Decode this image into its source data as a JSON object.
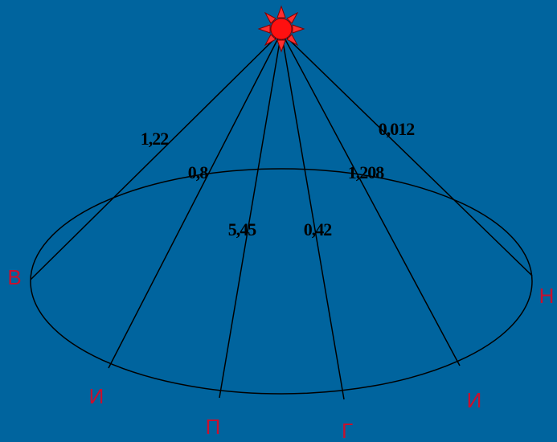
{
  "nodes": [
    {
      "label": "В"
    },
    {
      "label": "И"
    },
    {
      "label": "П"
    },
    {
      "label": "Г"
    },
    {
      "label": "И"
    },
    {
      "label": "Н"
    }
  ],
  "edges": [
    {
      "label": "1,22"
    },
    {
      "label": "0,8"
    },
    {
      "label": "5,45"
    },
    {
      "label": "0,42"
    },
    {
      "label": "1,208"
    },
    {
      "label": "0,012"
    }
  ]
}
